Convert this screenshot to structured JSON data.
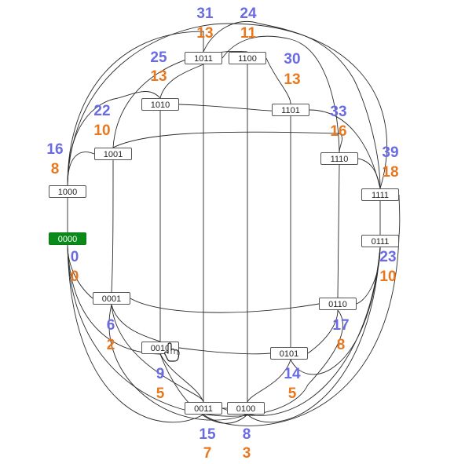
{
  "colors": {
    "blue_number": "#6a6ae3",
    "orange_number": "#e8771d",
    "active_node_fill": "#0a8a19",
    "edge": "#2a2a2a"
  },
  "nodes": {
    "n0000": {
      "label": "0000",
      "blue": "0",
      "orange": "0",
      "active": true
    },
    "n0001": {
      "label": "0001",
      "blue": "6",
      "orange": "2"
    },
    "n0010": {
      "label": "0010",
      "blue": "9",
      "orange": "5"
    },
    "n0011": {
      "label": "0011",
      "blue": "15",
      "orange": "7"
    },
    "n0100": {
      "label": "0100",
      "blue": "8",
      "orange": "3"
    },
    "n0101": {
      "label": "0101",
      "blue": "14",
      "orange": "5"
    },
    "n0110": {
      "label": "0110",
      "blue": "17",
      "orange": "8"
    },
    "n0111": {
      "label": "0111",
      "blue": "23",
      "orange": "10"
    },
    "n1000": {
      "label": "1000",
      "blue": "16",
      "orange": "8"
    },
    "n1001": {
      "label": "1001",
      "blue": "22",
      "orange": "10"
    },
    "n1010": {
      "label": "1010",
      "blue": "25",
      "orange": "13"
    },
    "n1011": {
      "label": "1011",
      "blue": "31",
      "orange": "13"
    },
    "n1100": {
      "label": "1100",
      "blue": "24",
      "orange": "11"
    },
    "n1101": {
      "label": "1101",
      "blue": "30",
      "orange": "13"
    },
    "n1110": {
      "label": "1110",
      "blue": "33",
      "orange": "16"
    },
    "n1111": {
      "label": "1111",
      "blue": "39",
      "orange": "18"
    }
  },
  "cursor_icon": "hand-pointer-icon"
}
